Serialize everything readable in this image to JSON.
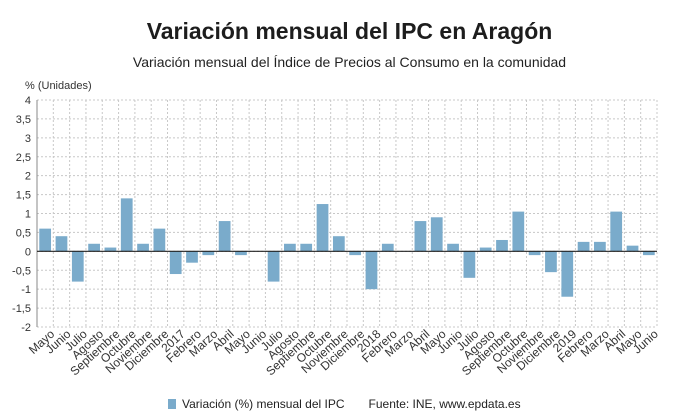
{
  "header": {
    "title": "Variación mensual del IPC en Aragón",
    "subtitle": "Variación mensual del Índice de Precios al Consumo en la comunidad"
  },
  "footer": {
    "source": "Fuente: INE, www.epdata.es"
  },
  "colors": {
    "bar": "#7aabcb",
    "grid": "#c8c8c8",
    "zero_line": "#222222"
  },
  "chart_data": {
    "type": "bar",
    "ylabel": "% (Unidades)",
    "ylim": [
      -2,
      4
    ],
    "yticks": [
      4,
      3.5,
      3,
      2.5,
      2,
      1.5,
      1,
      0.5,
      0,
      -0.5,
      -1,
      -1.5,
      -2
    ],
    "ytick_labels": [
      "4",
      "3,5",
      "3",
      "2,5",
      "2",
      "1,5",
      "1",
      "0,5",
      "0",
      "-0,5",
      "-1",
      "-1,5",
      "-2"
    ],
    "grid": true,
    "legend_position": "bottom",
    "categories": [
      "Mayo",
      "Junio",
      "Julio",
      "Agosto",
      "Septiembre",
      "Octubre",
      "Noviembre",
      "Diciembre",
      "2017",
      "Febrero",
      "Marzo",
      "Abril",
      "Mayo",
      "Junio",
      "Julio",
      "Agosto",
      "Septiembre",
      "Octubre",
      "Noviembre",
      "Diciembre",
      "2018",
      "Febrero",
      "Marzo",
      "Abril",
      "Mayo",
      "Junio",
      "Julio",
      "Agosto",
      "Septiembre",
      "Octubre",
      "Noviembre",
      "Diciembre",
      "2019",
      "Febrero",
      "Marzo",
      "Abril",
      "Mayo",
      "Junio"
    ],
    "series": [
      {
        "name": "Variación (%) mensual del IPC",
        "values": [
          0.6,
          0.4,
          -0.8,
          0.2,
          0.1,
          1.4,
          0.2,
          0.6,
          -0.6,
          -0.3,
          -0.1,
          0.8,
          -0.1,
          0.0,
          -0.8,
          0.2,
          0.2,
          1.25,
          0.4,
          -0.1,
          -1.0,
          0.2,
          0.0,
          0.8,
          0.9,
          0.2,
          -0.7,
          0.1,
          0.3,
          1.05,
          -0.1,
          -0.55,
          -1.2,
          0.25,
          0.25,
          1.05,
          0.15,
          -0.1
        ]
      }
    ]
  }
}
